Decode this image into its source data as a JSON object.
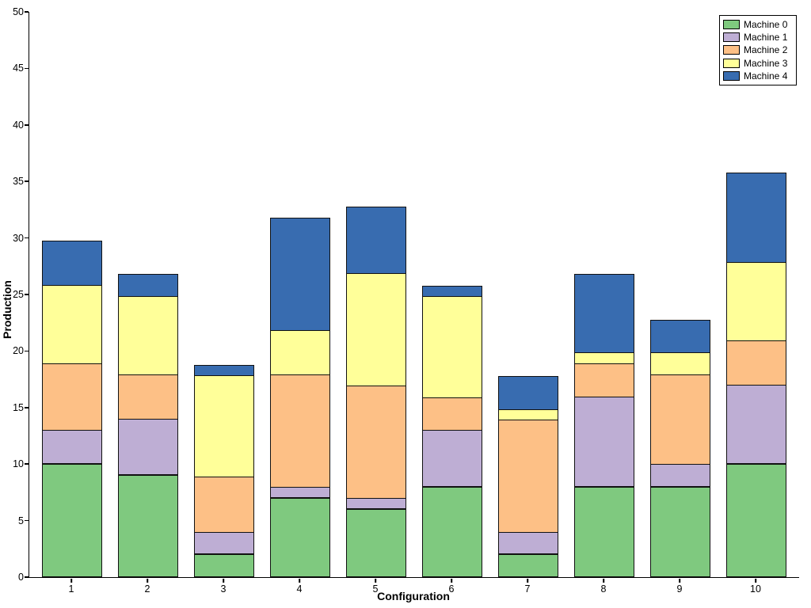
{
  "chart_data": {
    "type": "bar",
    "stacked": true,
    "title": "",
    "xlabel": "Configuration",
    "ylabel": "Production",
    "categories": [
      "1",
      "2",
      "3",
      "4",
      "5",
      "6",
      "7",
      "8",
      "9",
      "10"
    ],
    "series": [
      {
        "name": "Machine 0",
        "color": "#7fc97f",
        "values": [
          10,
          9,
          2,
          7,
          6,
          8,
          2,
          8,
          8,
          10
        ]
      },
      {
        "name": "Machine 1",
        "color": "#beaed4",
        "values": [
          3,
          5,
          2,
          1,
          1,
          5,
          2,
          8,
          2,
          7
        ]
      },
      {
        "name": "Machine 2",
        "color": "#fdc086",
        "values": [
          6,
          4,
          5,
          10,
          10,
          3,
          10,
          3,
          8,
          4
        ]
      },
      {
        "name": "Machine 3",
        "color": "#ffff99",
        "values": [
          7,
          7,
          9,
          4,
          10,
          9,
          1,
          1,
          2,
          7
        ]
      },
      {
        "name": "Machine 4",
        "color": "#386cb0",
        "values": [
          4,
          2,
          1,
          10,
          6,
          1,
          3,
          7,
          3,
          8
        ]
      }
    ],
    "bar_totals": [
      30,
      27,
      19,
      32,
      33,
      26,
      18,
      27,
      23,
      36
    ],
    "ylim": [
      0,
      50
    ],
    "yticks": [
      0,
      5,
      10,
      15,
      20,
      25,
      30,
      35,
      40,
      45,
      50
    ],
    "grid": false,
    "legend_position": "upper right",
    "bar_edge_color": "#111111",
    "background_color": "#ffffff"
  }
}
